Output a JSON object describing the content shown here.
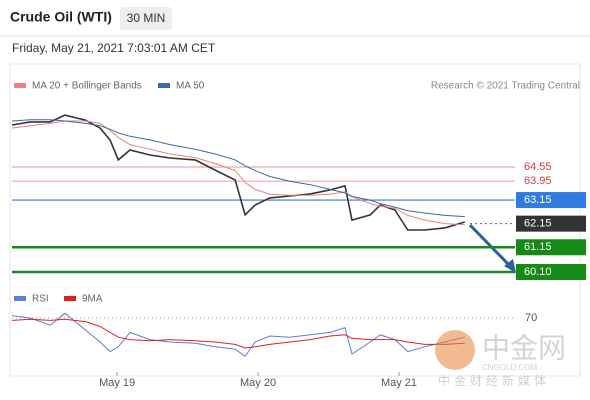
{
  "chart_data": {
    "type": "line",
    "title": "Crude Oil (WTI)",
    "interval": "30 MIN",
    "subtitle": "Friday, May 21, 2021 7:03:01 AM CET",
    "source": "Research © 2021 Trading Central",
    "xlim": [
      -17.9,
      66.9
    ],
    "xticks": [
      {
        "value": 0,
        "label": "May 19"
      },
      {
        "value": 24,
        "label": "May 20"
      },
      {
        "value": 48,
        "label": "May 21"
      }
    ],
    "ylim": [
      59.55,
      67.39
    ],
    "x": [
      -17.9,
      -14.8,
      -11.4,
      -8.9,
      -5.4,
      -2.9,
      -1.2,
      0.2,
      2.2,
      5.6,
      9.0,
      13.3,
      16.7,
      20.1,
      21.8,
      23.5,
      26.0,
      29.4,
      32.9,
      36.3,
      38.8,
      40.0,
      43.1,
      44.8,
      47.3,
      49.5,
      52.4,
      55.8,
      59.2
    ],
    "series": [
      {
        "name": "Price",
        "color": "#333333",
        "values": [
          66.33,
          66.46,
          66.46,
          66.75,
          66.54,
          66.2,
          65.69,
          64.85,
          65.27,
          65.06,
          64.93,
          64.85,
          64.42,
          64.0,
          62.52,
          62.94,
          63.24,
          63.32,
          63.41,
          63.58,
          63.75,
          62.3,
          62.52,
          62.94,
          62.73,
          61.88,
          61.88,
          61.97,
          62.22
        ]
      },
      {
        "name": "MA 20 + Bollinger Bands",
        "color": "#f08080",
        "values": [
          66.2,
          66.3,
          66.4,
          66.5,
          66.5,
          66.4,
          66.1,
          65.8,
          65.5,
          65.3,
          65.1,
          64.95,
          64.7,
          64.4,
          63.9,
          63.6,
          63.4,
          63.35,
          63.35,
          63.4,
          63.5,
          63.3,
          63.0,
          62.9,
          62.8,
          62.5,
          62.3,
          62.15,
          62.1
        ]
      },
      {
        "name": "MA 50",
        "color": "#3a6aa8",
        "values": [
          66.5,
          66.55,
          66.55,
          66.5,
          66.4,
          66.3,
          66.15,
          66.0,
          65.85,
          65.7,
          65.5,
          65.3,
          65.1,
          64.85,
          64.6,
          64.4,
          64.15,
          63.95,
          63.8,
          63.6,
          63.45,
          63.3,
          63.15,
          63.0,
          62.85,
          62.7,
          62.6,
          62.5,
          62.45
        ]
      }
    ],
    "levels": [
      {
        "value": 64.55,
        "label": "64.55",
        "color": "#f4a6a6"
      },
      {
        "value": 63.95,
        "label": "63.95",
        "color": "#f4a6a6"
      },
      {
        "value": 63.15,
        "label": "63.15",
        "color": "#2f7be0"
      },
      {
        "value": 62.15,
        "label": "62.15",
        "color": "#333333"
      },
      {
        "value": 61.15,
        "label": "61.15",
        "color": "#168a16"
      },
      {
        "value": 60.1,
        "label": "60.10",
        "color": "#168a16"
      }
    ],
    "rsi": {
      "ylim": [
        25,
        85
      ],
      "yticks": [
        70
      ],
      "series": [
        {
          "name": "RSI",
          "color": "#5b7fd6",
          "values": [
            72,
            70,
            64,
            74,
            60,
            50,
            42,
            46,
            58,
            52,
            50,
            49,
            46,
            44,
            38,
            50,
            55,
            54,
            56,
            58,
            62,
            40,
            50,
            56,
            52,
            42,
            46,
            50,
            54
          ]
        },
        {
          "name": "9MA",
          "color": "#e02020",
          "values": [
            68,
            69,
            68,
            69,
            67,
            63,
            58,
            54,
            52,
            51,
            52,
            51,
            50,
            48,
            45,
            46,
            48,
            50,
            52,
            55,
            56,
            53,
            52,
            52,
            52,
            50,
            48,
            48,
            49
          ]
        }
      ]
    },
    "watermark": [
      "中金网",
      "CNGOLD.COM",
      "中金财经新媒体"
    ]
  }
}
